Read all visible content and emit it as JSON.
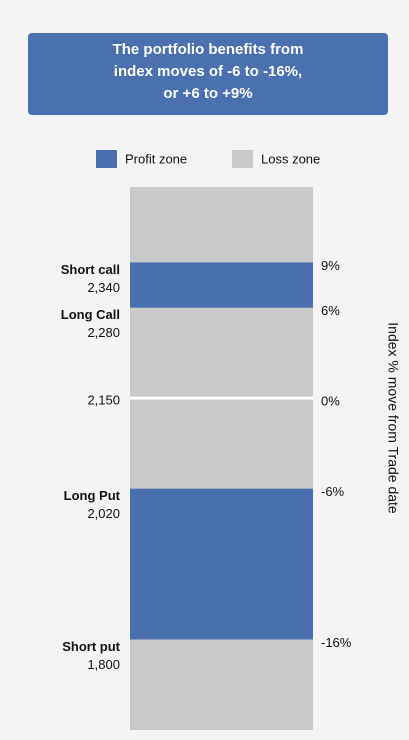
{
  "chart_data": {
    "type": "band",
    "title": [
      "The portfolio benefits from",
      "index moves of -6 to -16%,",
      "or +6 to +9%"
    ],
    "y_axis_label": "Index % move from Trade date",
    "series": [
      {
        "name": "Profit zone",
        "color": "#4a6fae",
        "ranges": [
          [
            6,
            9
          ],
          [
            -16,
            -6
          ]
        ]
      },
      {
        "name": "Loss zone",
        "color": "#c9c9c9"
      }
    ],
    "levels": [
      {
        "name": "Short call",
        "level": "2,340",
        "move": 9
      },
      {
        "name": "Long Call",
        "level": "2,280",
        "move": 6
      },
      {
        "name": null,
        "level": "2,150",
        "move": 0
      },
      {
        "name": "Long Put",
        "level": "2,020",
        "move": -6
      },
      {
        "name": "Short put",
        "level": "1,800",
        "move": -16
      }
    ],
    "ylim": [
      -22,
      14
    ],
    "yticks": [
      {
        "value": 9,
        "label": "9%"
      },
      {
        "value": 6,
        "label": "6%"
      },
      {
        "value": 0,
        "label": "0%"
      },
      {
        "value": -6,
        "label": "-6%"
      },
      {
        "value": -16,
        "label": "-16%"
      }
    ],
    "zero_line_color": "#ffffff"
  }
}
